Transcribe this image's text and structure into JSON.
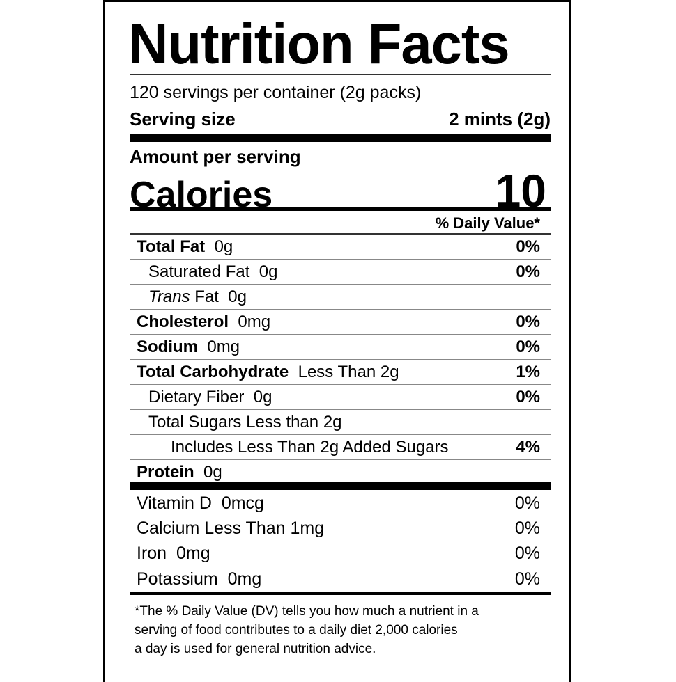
{
  "title": "Nutrition Facts",
  "servings_per_container": "120 servings per container (2g packs)",
  "serving_size": {
    "label": "Serving size",
    "value": "2 mints (2g)"
  },
  "amount_per_serving": "Amount per serving",
  "calories": {
    "label": "Calories",
    "value": "10"
  },
  "daily_value_header": "% Daily Value*",
  "nutrients": [
    {
      "name": "Total Fat",
      "amount": "0g",
      "dv": "0%",
      "bold": true,
      "indent": 0
    },
    {
      "name": "Saturated Fat",
      "amount": "0g",
      "dv": "0%",
      "bold": false,
      "indent": 1
    },
    {
      "name": "Trans",
      "name_suffix": " Fat",
      "amount": "0g",
      "dv": "",
      "bold": false,
      "italic_name": true,
      "indent": 1
    },
    {
      "name": "Cholesterol",
      "amount": "0mg",
      "dv": "0%",
      "bold": true,
      "indent": 0
    },
    {
      "name": "Sodium",
      "amount": "0mg",
      "dv": "0%",
      "bold": true,
      "indent": 0
    },
    {
      "name": "Total Carbohydrate",
      "amount": "Less Than 2g",
      "dv": "1%",
      "bold": true,
      "indent": 0
    },
    {
      "name": "Dietary Fiber",
      "amount": "0g",
      "dv": "0%",
      "bold": false,
      "indent": 1
    },
    {
      "name": "Total Sugars Less than 2g",
      "amount": "",
      "dv": "",
      "bold": false,
      "indent": 1
    },
    {
      "name": "Includes Less Than 2g Added Sugars",
      "amount": "",
      "dv": "4%",
      "bold": false,
      "indent": 2
    },
    {
      "name": "Protein",
      "amount": "0g",
      "dv": "",
      "bold": true,
      "indent": 0
    }
  ],
  "vitamins": [
    {
      "name": "Vitamin D",
      "amount": "0mcg",
      "dv": "0%"
    },
    {
      "name": "Calcium Less Than 1mg",
      "amount": "",
      "dv": "0%"
    },
    {
      "name": "Iron",
      "amount": "0mg",
      "dv": "0%"
    },
    {
      "name": "Potassium",
      "amount": "0mg",
      "dv": "0%"
    }
  ],
  "footnote": [
    "*The % Daily Value (DV) tells you how much a nutrient in a",
    "serving of food contributes to a daily diet 2,000 calories",
    "a day is used for general nutrition advice."
  ]
}
